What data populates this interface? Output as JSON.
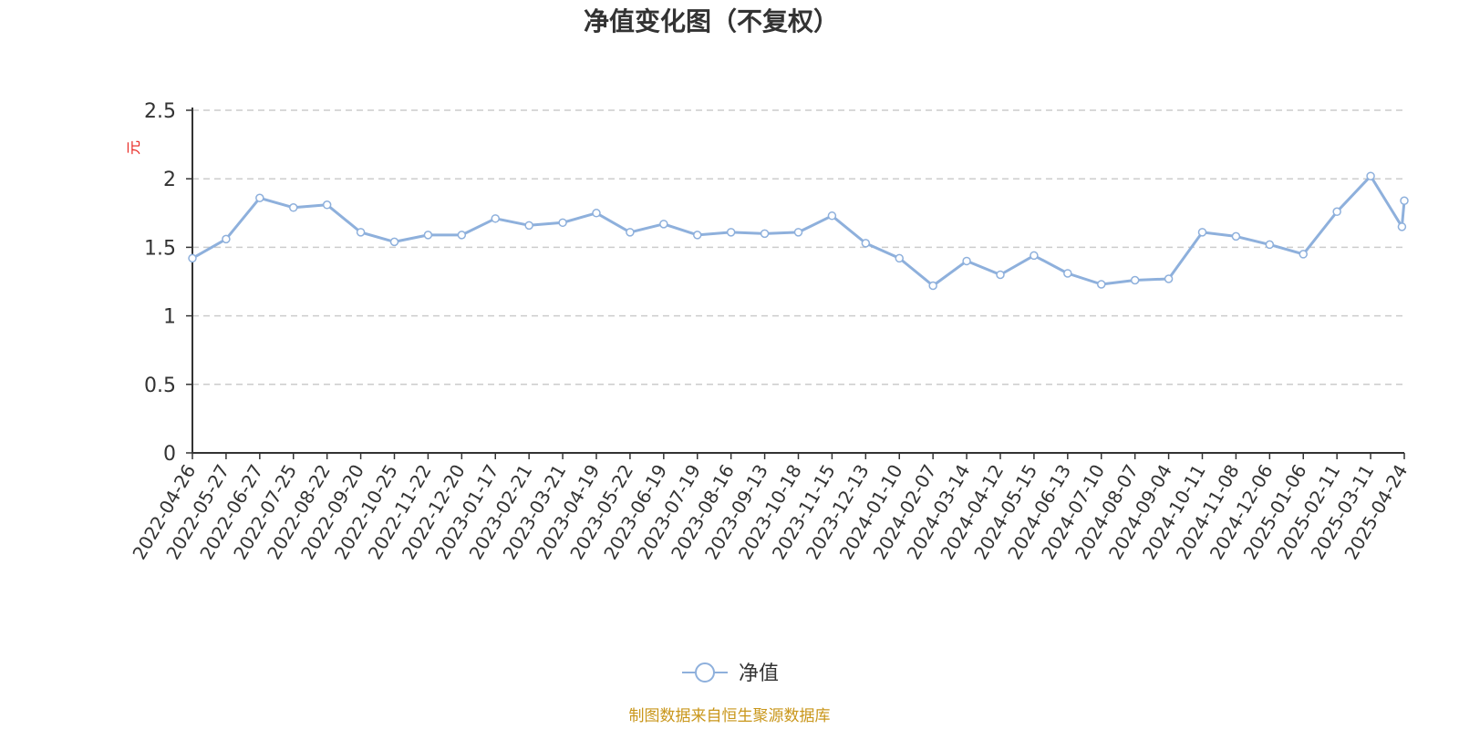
{
  "chart_data": {
    "type": "line",
    "title": "净值变化图（不复权）",
    "ylabel": "元",
    "ylim": [
      0,
      2.5
    ],
    "yticks": [
      "0",
      "0.5",
      "1",
      "1.5",
      "2",
      "2.5"
    ],
    "grid": true,
    "legend_position": "bottom-center",
    "categories": [
      "2022-04-26",
      "2022-05-27",
      "2022-06-27",
      "2022-07-25",
      "2022-08-22",
      "2022-09-20",
      "2022-10-25",
      "2022-11-22",
      "2022-12-20",
      "2023-01-17",
      "2023-02-21",
      "2023-03-21",
      "2023-04-19",
      "2023-05-22",
      "2023-06-19",
      "2023-07-19",
      "2023-08-16",
      "2023-09-13",
      "2023-10-18",
      "2023-11-15",
      "2023-12-13",
      "2024-01-10",
      "2024-02-07",
      "2024-03-14",
      "2024-04-12",
      "2024-05-15",
      "2024-06-13",
      "2024-07-10",
      "2024-08-07",
      "2024-09-04",
      "2024-10-11",
      "2024-11-08",
      "2024-12-06",
      "2025-01-06",
      "2025-02-11",
      "2025-03-11",
      "2025-04-24"
    ],
    "series": [
      {
        "name": "净值",
        "values": [
          1.42,
          1.56,
          1.86,
          1.79,
          1.81,
          1.61,
          1.54,
          1.59,
          1.59,
          1.71,
          1.66,
          1.68,
          1.75,
          1.61,
          1.67,
          1.59,
          1.61,
          1.6,
          1.61,
          1.73,
          1.53,
          1.42,
          1.22,
          1.4,
          1.3,
          1.44,
          1.31,
          1.23,
          1.26,
          1.27,
          1.61,
          1.58,
          1.52,
          1.45,
          1.76,
          2.02,
          1.84
        ],
        "extra_points": [
          {
            "after_index": 35,
            "value": 1.65
          }
        ]
      }
    ],
    "source_note": "制图数据来自恒生聚源数据库"
  },
  "colors": {
    "series": "#8eb0dc",
    "unit": "#e8251f",
    "source": "#c9961a",
    "axis": "#333333",
    "grid": "#cccccc"
  }
}
